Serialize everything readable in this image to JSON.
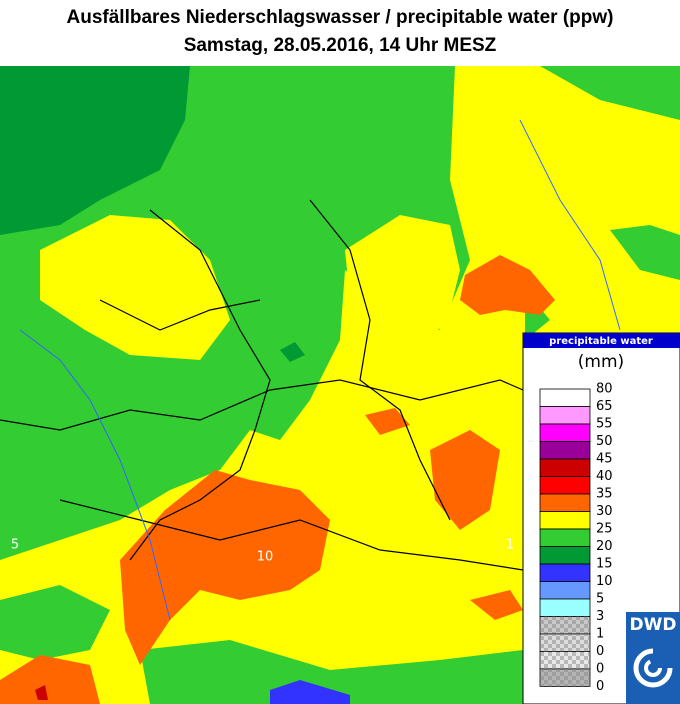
{
  "title": {
    "line1": "Ausfällbares Niederschlagswasser / precipitable water (ppw)",
    "line2": "Samstag, 28.05.2016,  14 Uhr MESZ"
  },
  "map": {
    "labels": [
      "5",
      "10",
      "1"
    ]
  },
  "legend": {
    "header": "precipitable water",
    "unit": "(mm)",
    "levels": [
      80,
      65,
      55,
      50,
      45,
      40,
      35,
      30,
      25,
      20,
      15,
      10,
      5,
      3,
      1,
      0,
      0,
      0
    ],
    "colors": [
      "#ffffff",
      "#ff99ff",
      "#ff00ff",
      "#990099",
      "#cc0000",
      "#ff0000",
      "#ff6600",
      "#ffff00",
      "#33cc33",
      "#009933",
      "#3333ff",
      "#6699ff",
      "#99ffff",
      "#c8c8c8",
      "#dcdcdc",
      "#e8e8e8",
      "#b4b4b4"
    ]
  },
  "logo": {
    "text": "DWD"
  }
}
